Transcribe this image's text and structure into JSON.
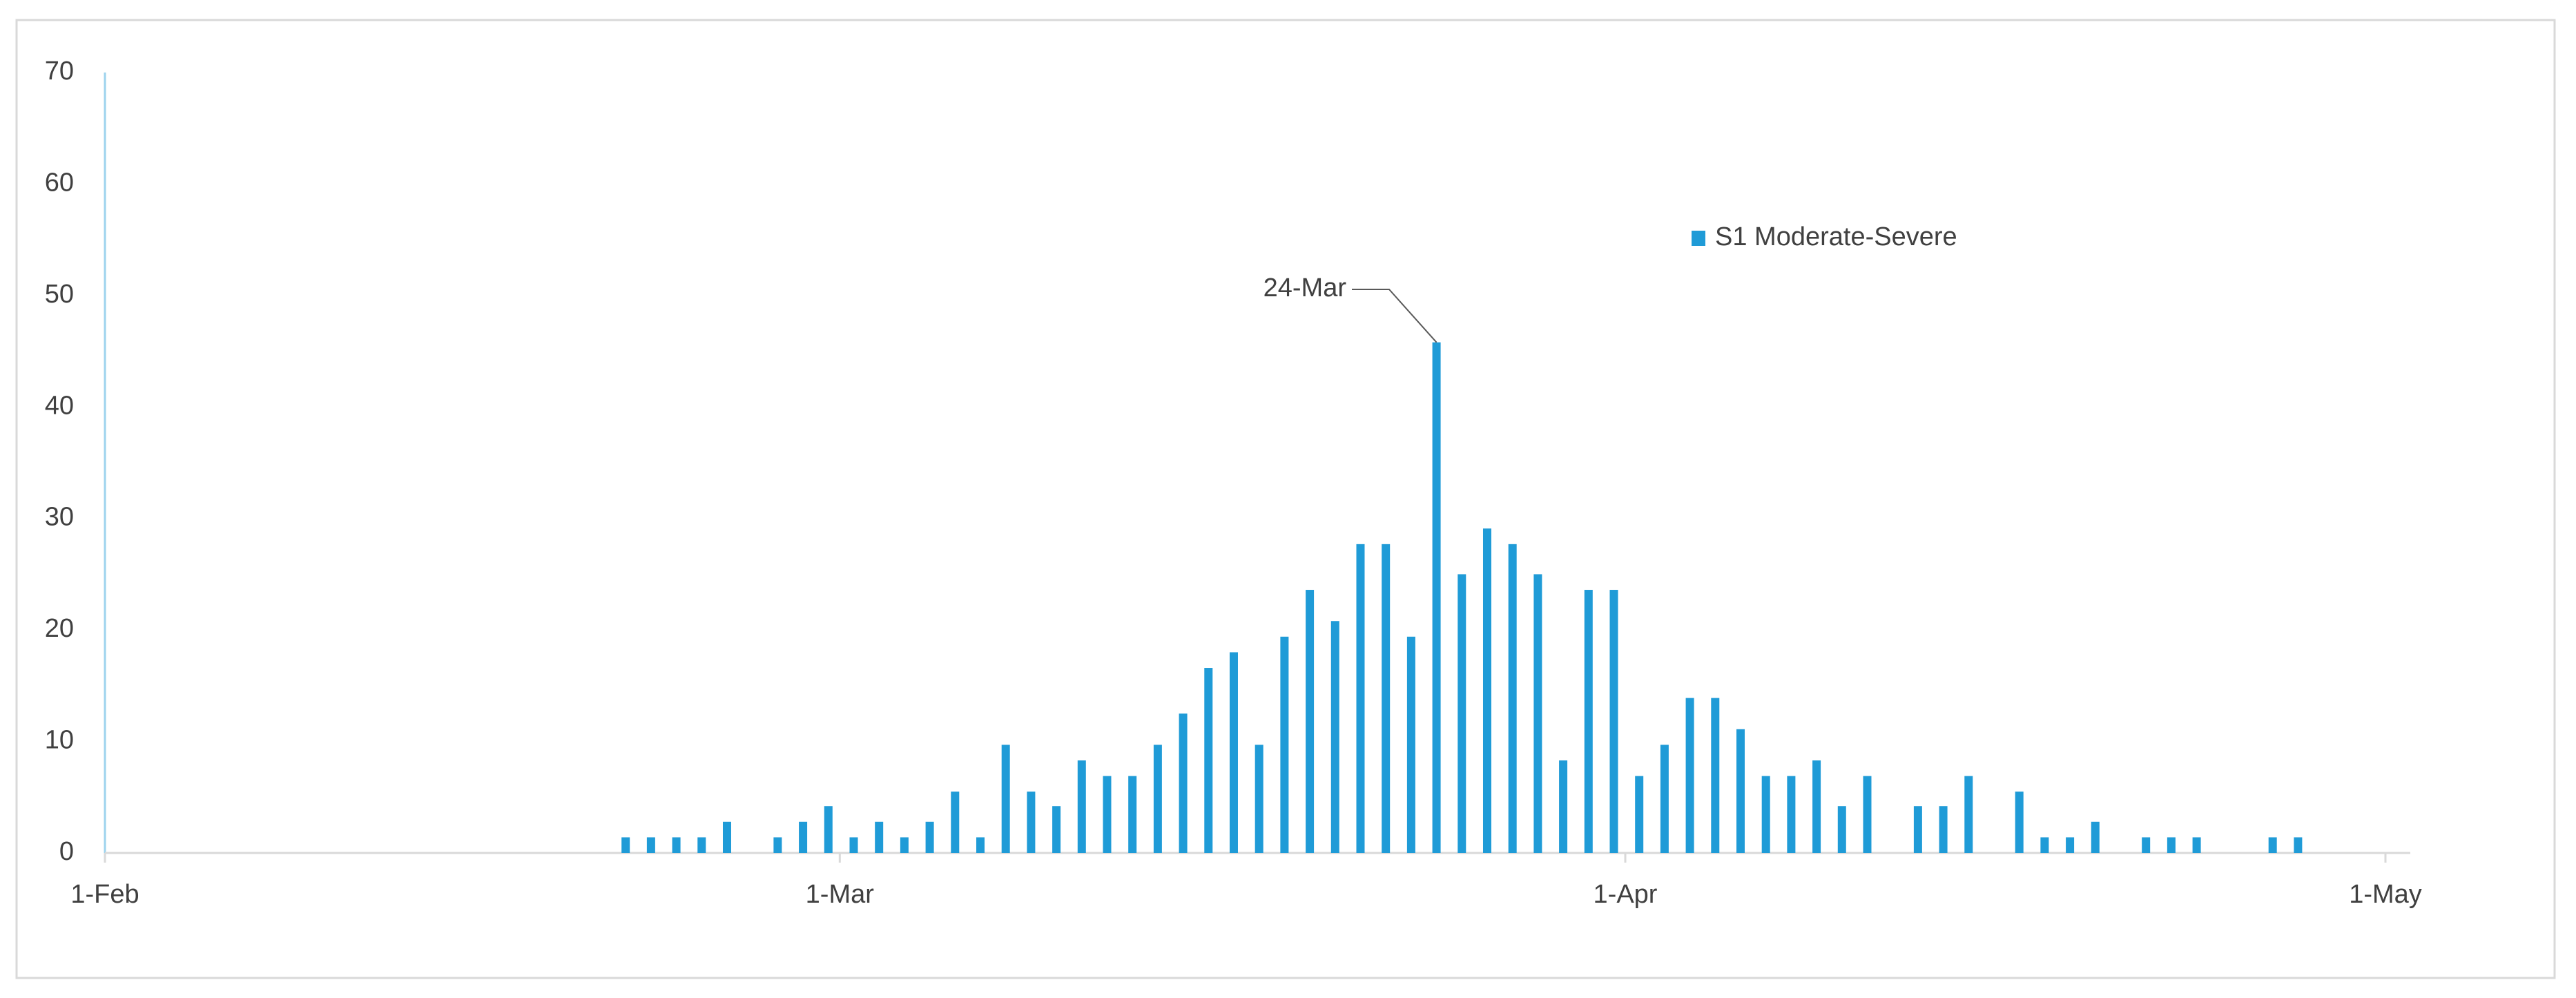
{
  "chart_data": {
    "type": "bar",
    "series": [
      {
        "name": "S1 Moderate-Severe",
        "color": "#1f9bd7",
        "x": [
          "21-Feb",
          "22-Feb",
          "23-Feb",
          "24-Feb",
          "25-Feb",
          "27-Feb",
          "28-Feb",
          "29-Feb",
          "1-Mar",
          "2-Mar",
          "3-Mar",
          "4-Mar",
          "5-Mar",
          "6-Mar",
          "7-Mar",
          "8-Mar",
          "9-Mar",
          "10-Mar",
          "11-Mar",
          "12-Mar",
          "13-Mar",
          "14-Mar",
          "15-Mar",
          "16-Mar",
          "17-Mar",
          "18-Mar",
          "19-Mar",
          "20-Mar",
          "21-Mar",
          "22-Mar",
          "23-Mar",
          "24-Mar",
          "25-Mar",
          "26-Mar",
          "27-Mar",
          "28-Mar",
          "29-Mar",
          "30-Mar",
          "31-Mar",
          "1-Apr",
          "2-Apr",
          "3-Apr",
          "4-Apr",
          "5-Apr",
          "6-Apr",
          "7-Apr",
          "8-Apr",
          "9-Apr",
          "10-Apr",
          "12-Apr",
          "13-Apr",
          "14-Apr",
          "16-Apr",
          "17-Apr",
          "18-Apr",
          "19-Apr",
          "21-Apr",
          "22-Apr",
          "23-Apr",
          "26-Apr",
          "27-Apr"
        ],
        "values": [
          1.4,
          1.4,
          1.4,
          1.4,
          2.8,
          1.4,
          2.8,
          4.2,
          1.4,
          2.8,
          1.4,
          2.8,
          5.5,
          1.4,
          9.7,
          5.5,
          4.2,
          8.3,
          6.9,
          6.9,
          9.7,
          12.5,
          16.6,
          18,
          9.7,
          19.4,
          23.6,
          20.8,
          27.7,
          27.7,
          19.4,
          45.8,
          25,
          29.1,
          27.7,
          25,
          8.3,
          23.6,
          23.6,
          6.9,
          9.7,
          13.9,
          13.9,
          11.1,
          6.9,
          6.9,
          8.3,
          4.2,
          6.9,
          4.2,
          4.2,
          6.9,
          5.5,
          1.4,
          1.4,
          2.8,
          1.4,
          1.4,
          1.4,
          1.4,
          1.4
        ]
      }
    ],
    "xlim": [
      "1-Feb",
      "1-May"
    ],
    "xticks": [
      "1-Feb",
      "1-Mar",
      "1-Apr",
      "1-May"
    ],
    "ylim": [
      0,
      70
    ],
    "yticks": [
      0,
      10,
      20,
      30,
      40,
      50,
      60,
      70
    ],
    "grid": false,
    "legend": "upper right",
    "annotation": {
      "text": "24-Mar",
      "x": "24-Mar"
    }
  }
}
